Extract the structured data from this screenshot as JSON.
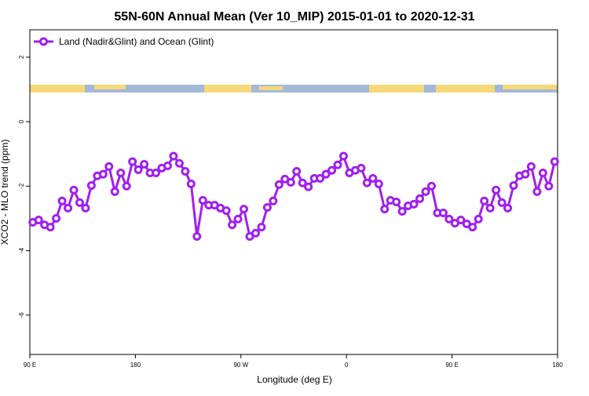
{
  "chart_data": {
    "type": "line",
    "title": "55N-60N Annual Mean (Ver 10_MIP)   2015-01-01 to 2020-12-31",
    "x_label": "Longitude (deg E)",
    "y_label": "XCO2 - MLO trend (ppm)",
    "x": [
      92.5,
      97.5,
      102.5,
      107.5,
      112.5,
      117.5,
      122.5,
      127.5,
      132.5,
      137.5,
      142.5,
      147.5,
      152.5,
      157.5,
      162.5,
      167.5,
      172.5,
      177.5,
      182.5,
      187.5,
      192.5,
      197.5,
      202.5,
      207.5,
      212.5,
      217.5,
      222.5,
      227.5,
      232.5,
      237.5,
      242.5,
      247.5,
      252.5,
      257.5,
      262.5,
      267.5,
      272.5,
      277.5,
      282.5,
      287.5,
      292.5,
      297.5,
      302.5,
      307.5,
      312.5,
      317.5,
      322.5,
      327.5,
      332.5,
      337.5,
      342.5,
      347.5,
      352.5,
      357.5,
      362.5,
      367.5,
      372.5,
      377.5,
      382.5,
      387.5,
      392.5,
      397.5,
      402.5,
      407.5,
      412.5,
      417.5,
      422.5,
      427.5,
      432.5,
      437.5,
      442.5,
      447.5,
      452.5,
      457.5,
      462.5,
      467.5,
      472.5,
      477.5,
      482.5,
      487.5,
      492.5,
      497.5,
      502.5,
      507.5,
      512.5,
      517.5,
      522.5,
      527.5,
      532.5,
      537.5
    ],
    "series": [
      {
        "name": "Land (Nadir&Glint) and Ocean (Glint)",
        "color": "#a020f0",
        "values": [
          -3.12,
          -3.05,
          -3.2,
          -3.27,
          -3.0,
          -2.46,
          -2.68,
          -2.12,
          -2.51,
          -2.68,
          -1.98,
          -1.68,
          -1.63,
          -1.39,
          -2.17,
          -1.59,
          -2.0,
          -1.24,
          -1.49,
          -1.32,
          -1.59,
          -1.59,
          -1.44,
          -1.37,
          -1.07,
          -1.29,
          -1.54,
          -1.93,
          -3.56,
          -2.44,
          -2.59,
          -2.59,
          -2.68,
          -2.76,
          -3.2,
          -3.02,
          -2.71,
          -3.56,
          -3.46,
          -3.27,
          -2.66,
          -2.46,
          -1.95,
          -1.78,
          -1.88,
          -1.54,
          -1.9,
          -2.02,
          -1.76,
          -1.76,
          -1.63,
          -1.51,
          -1.34,
          -1.07,
          -1.59,
          -1.51,
          -1.44,
          -1.9,
          -1.76,
          -1.93,
          -2.71,
          -2.44,
          -2.49,
          -2.78,
          -2.61,
          -2.56,
          -2.39,
          -2.17,
          -2.0,
          -2.83,
          -2.83,
          -3.02,
          -3.15,
          -3.05,
          -3.17,
          -3.27,
          -3.02,
          -2.46,
          -2.68,
          -2.12,
          -2.51,
          -2.68,
          -1.98,
          -1.68,
          -1.63,
          -1.39,
          -2.17,
          -1.59,
          -2.0,
          -1.24
        ]
      }
    ],
    "xlim": [
      90,
      540
    ],
    "xticks": [
      {
        "value": 90,
        "label": "90 E"
      },
      180,
      {
        "value": 270,
        "label": "90 W"
      },
      {
        "value": 360,
        "label": "0"
      },
      {
        "value": 450,
        "label": "90 E"
      },
      {
        "value": 540,
        "label": "180"
      }
    ],
    "ylim": [
      -7.22,
      2.85
    ],
    "yticks": [
      -6,
      -4,
      -2,
      0,
      2
    ],
    "legend": "top-left"
  }
}
